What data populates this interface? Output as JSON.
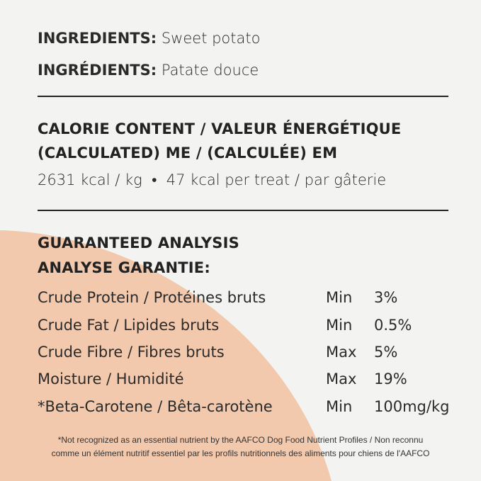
{
  "colors": {
    "background": "#f3f3f1",
    "accent_shape": "#f3c9ad",
    "text": "#222222"
  },
  "ingredients": [
    {
      "label": "INGREDIENTS:",
      "value": "Sweet potato"
    },
    {
      "label": "INGRÉDIENTS:",
      "value": "Patate douce"
    }
  ],
  "calorie": {
    "heading1": "CALORIE CONTENT / VALEUR ÉNERGÉTIQUE",
    "heading2": "(CALCULATED) ME / (CALCULÉE) EM",
    "value": "2631 kcal / kg  •  47 kcal per treat / par gâterie"
  },
  "analysis": {
    "heading1": "GUARANTEED ANALYSIS",
    "heading2": "ANALYSE GARANTIE:",
    "rows": [
      {
        "name": "Crude Protein / Protéines bruts",
        "qualifier": "Min",
        "value": "3%"
      },
      {
        "name": "Crude Fat / Lipides bruts",
        "qualifier": "Min",
        "value": "0.5%"
      },
      {
        "name": "Crude Fibre / Fibres bruts",
        "qualifier": "Max",
        "value": "5%"
      },
      {
        "name": "Moisture / Humidité",
        "qualifier": "Max",
        "value": "19%"
      },
      {
        "name": "*Beta-Carotene / Bêta-carotène",
        "qualifier": "Min",
        "value": "100mg/kg"
      }
    ]
  },
  "footnote": {
    "line1": "*Not recognized as an essential nutrient by the AAFCO Dog Food Nutrient Profiles / Non reconnu",
    "line2": "comme un élément nutritif essentiel par les profils nutritionnels des aliments pour chiens de l'AAFCO"
  }
}
